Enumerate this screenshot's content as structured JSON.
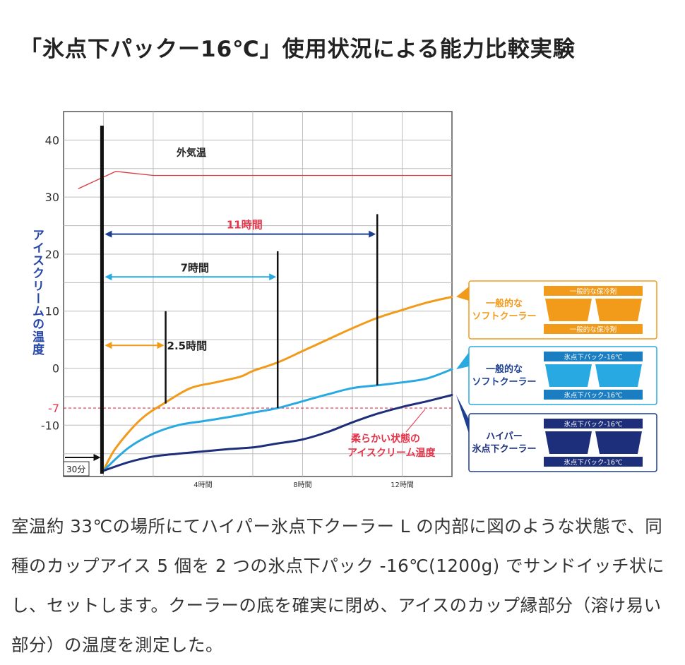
{
  "title": "「氷点下パックー16℃」使用状況による能力比較実験",
  "description": "室温約 33℃の場所にてハイパー氷点下クーラー L の内部に図のような状態で、同種のカップアイス 5 個を 2 つの氷点下パック -16℃(1200g) でサンドイッチ状にし、セットします。クーラーの底を確実に閉め、アイスのカップ縁部分（溶け易い部分）の温度を測定した。",
  "chart_data": {
    "type": "line",
    "ylabel": "アイスクリームの温度",
    "xlabel": "",
    "ylim": [
      -19,
      45
    ],
    "xlim": [
      -1.6,
      14
    ],
    "y_ticks": [
      40,
      30,
      20,
      10,
      0,
      -10
    ],
    "y_tick_labels": [
      "40",
      "30",
      "20",
      "10",
      "0",
      "-10"
    ],
    "x_ticks": [
      4,
      8,
      12
    ],
    "x_tick_labels": [
      "4時間",
      "8時間",
      "12時間"
    ],
    "grid": true,
    "series": [
      {
        "name": "外気温",
        "color": "#d9383f",
        "points": [
          [
            -1,
            31.5
          ],
          [
            0,
            33.5
          ],
          [
            0.5,
            34.5
          ],
          [
            2,
            33.8
          ],
          [
            14,
            33.8
          ]
        ]
      },
      {
        "name": "一般的なソフトクーラー",
        "color": "#f29a1a",
        "points": [
          [
            0,
            -18
          ],
          [
            0.5,
            -14
          ],
          [
            1.5,
            -9
          ],
          [
            2.5,
            -6
          ],
          [
            3.5,
            -3.5
          ],
          [
            4.5,
            -2.5
          ],
          [
            5.5,
            -1.5
          ],
          [
            6,
            -0.5
          ],
          [
            7,
            1
          ],
          [
            8,
            3
          ],
          [
            9,
            5
          ],
          [
            10,
            7
          ],
          [
            11,
            8.8
          ],
          [
            12,
            10.2
          ],
          [
            13,
            11.5
          ],
          [
            14,
            12.5
          ]
        ]
      },
      {
        "name": "一般的なソフトクーラー",
        "color": "#28a9e1",
        "points": [
          [
            0,
            -18
          ],
          [
            1,
            -14
          ],
          [
            2,
            -11.5
          ],
          [
            3,
            -10
          ],
          [
            4,
            -9.3
          ],
          [
            5,
            -8.6
          ],
          [
            6,
            -7.8
          ],
          [
            7,
            -7
          ],
          [
            8,
            -5.8
          ],
          [
            9,
            -4.6
          ],
          [
            10,
            -3.5
          ],
          [
            11,
            -3
          ],
          [
            12,
            -2.5
          ],
          [
            13,
            -1.8
          ],
          [
            14,
            -0.2
          ]
        ]
      },
      {
        "name": "ハイパー氷点下クーラー",
        "color": "#1d2e7a",
        "points": [
          [
            0,
            -18
          ],
          [
            1,
            -16.5
          ],
          [
            2,
            -15.5
          ],
          [
            3,
            -15
          ],
          [
            4,
            -14.6
          ],
          [
            5,
            -14.2
          ],
          [
            6,
            -13.9
          ],
          [
            7,
            -13.2
          ],
          [
            8,
            -12.5
          ],
          [
            9,
            -11.2
          ],
          [
            10,
            -9.5
          ],
          [
            11,
            -8
          ],
          [
            12,
            -6.8
          ],
          [
            13,
            -5.8
          ],
          [
            14,
            -4.7
          ]
        ]
      }
    ],
    "reference_line": {
      "y": -7,
      "label": "-7",
      "color": "#e5334a"
    },
    "durations": [
      {
        "label": "11時間",
        "hours": 11,
        "y": 23.5,
        "color": "#1d3f8f",
        "label_color": "#e5334a"
      },
      {
        "label": "7時間",
        "hours": 7,
        "y": 16,
        "color": "#28a9e1",
        "label_color": "#222222"
      },
      {
        "label": "2.5時間",
        "hours": 2.5,
        "y": 4,
        "color": "#f29a1a",
        "label_color": "#222222"
      }
    ],
    "annotations": {
      "outside_temp": "外気温",
      "soft_ice_line1": "柔らかい状態の",
      "soft_ice_line2": "アイスクリーム温度",
      "start_label": "30分"
    },
    "legend": [
      {
        "label_line1": "一般的な",
        "label_line2": "ソフトクーラー",
        "color": "#f29a1a",
        "border": "#f29a1a",
        "pack_top": "一般的な保冷剤",
        "pack_bottom": "一般的な保冷剤",
        "pack_color": "#f29a1a",
        "text_color": "#f29a1a"
      },
      {
        "label_line1": "一般的な",
        "label_line2": "ソフトクーラー",
        "color": "#28a9e1",
        "border": "#28a9e1",
        "pack_top": "氷点下パック-16℃",
        "pack_bottom": "氷点下パック-16℃",
        "pack_color": "#1b7ec2",
        "text_color": "#1d3f8f"
      },
      {
        "label_line1": "ハイパー",
        "label_line2": "氷点下クーラー",
        "color": "#1d2e7a",
        "border": "#1d3f8f",
        "pack_top": "氷点下パック-16℃",
        "pack_bottom": "氷点下パック-16℃",
        "pack_color": "#1d2e7a",
        "text_color": "#1d2e7a"
      }
    ]
  }
}
